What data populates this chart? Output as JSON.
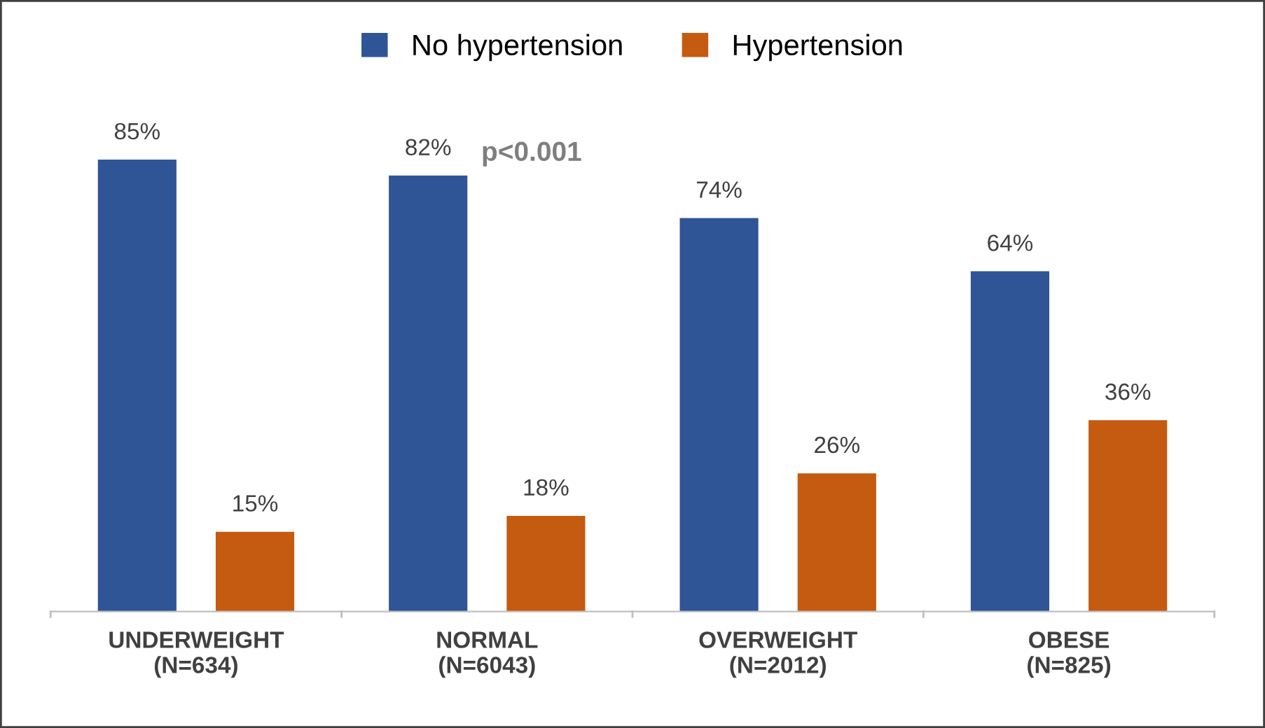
{
  "chart_data": {
    "type": "bar",
    "categories": [
      "UNDERWEIGHT\n(N=634)",
      "NORMAL\n(N=6043)",
      "OVERWEIGHT\n(N=2012)",
      "OBESE\n(N=825)"
    ],
    "series": [
      {
        "name": "No hypertension",
        "color": "#2f5597",
        "values": [
          85,
          82,
          74,
          64
        ],
        "value_labels": [
          "85%",
          "82%",
          "74%",
          "64%"
        ]
      },
      {
        "name": "Hypertension",
        "color": "#c55a11",
        "values": [
          15,
          18,
          26,
          36
        ],
        "value_labels": [
          "15%",
          "18%",
          "26%",
          "36%"
        ]
      }
    ],
    "annotations": [
      "p<0.001"
    ],
    "legend": "top",
    "grid": false
  }
}
